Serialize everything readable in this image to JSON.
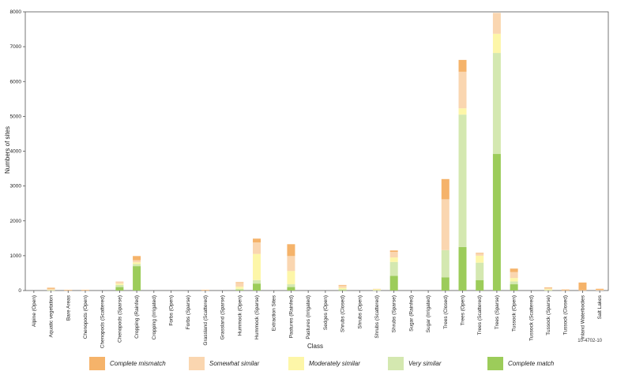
{
  "chart_data": {
    "type": "bar",
    "stacked": true,
    "title": "",
    "xlabel": "Class",
    "ylabel": "Numbers of sites",
    "ylim": [
      0,
      8000
    ],
    "yticks": [
      0,
      1000,
      2000,
      3000,
      4000,
      5000,
      6000,
      7000,
      8000
    ],
    "figure_code": "10-4702-10",
    "categories": [
      "Alpine (Open)",
      "Aquatic vegetation",
      "Bare Areas",
      "Chenopods (Open)",
      "Chenopods (Scattered)",
      "Chenopods (Sparse)",
      "Cropping (Rainfed)",
      "Cropping (Irrigated)",
      "Forbs (Open)",
      "Forbs (Sparse)",
      "Grassland (Scattered)",
      "Grassland (Sparse)",
      "Hummock (Open)",
      "Hummock (Sparse)",
      "Extraction Sites",
      "Pastures (Rainfed)",
      "Pastures (Irrigated)",
      "Sedges (Open)",
      "Shrubs (Closed)",
      "Shrubs (Open)",
      "Shrubs (Scattered)",
      "Shrubs (Sparse)",
      "Sugar (Rainfed)",
      "Sugar (Irrigated)",
      "Trees (Closed)",
      "Trees (Open)",
      "Trees (Scattered)",
      "Trees (Sparse)",
      "Tussock (Open)",
      "Tussock (Scattered)",
      "Tussock (Sparse)",
      "Tussock (Closed)",
      "Inland Waterbodies",
      "Salt Lakes"
    ],
    "series": [
      {
        "name": "Complete match",
        "color": "#9ccc5a",
        "values": [
          0,
          0,
          0,
          0,
          0,
          100,
          700,
          0,
          0,
          0,
          0,
          0,
          20,
          200,
          0,
          100,
          0,
          0,
          10,
          0,
          0,
          420,
          0,
          0,
          380,
          1250,
          300,
          3920,
          180,
          0,
          0,
          0,
          0,
          0
        ]
      },
      {
        "name": "Very similar",
        "color": "#d4e8b0",
        "values": [
          0,
          10,
          0,
          0,
          0,
          60,
          60,
          0,
          0,
          0,
          0,
          0,
          30,
          100,
          0,
          80,
          0,
          0,
          30,
          0,
          10,
          400,
          0,
          0,
          780,
          3800,
          500,
          2900,
          80,
          0,
          10,
          0,
          0,
          0
        ]
      },
      {
        "name": "Moderately similar",
        "color": "#fdf6a8",
        "values": [
          0,
          10,
          0,
          0,
          0,
          40,
          50,
          0,
          0,
          0,
          0,
          0,
          60,
          750,
          0,
          380,
          0,
          0,
          40,
          0,
          30,
          130,
          0,
          0,
          0,
          180,
          200,
          550,
          100,
          0,
          30,
          0,
          0,
          0
        ]
      },
      {
        "name": "Somewhat similar",
        "color": "#fad6b0",
        "values": [
          0,
          30,
          10,
          10,
          0,
          60,
          60,
          0,
          0,
          0,
          10,
          0,
          110,
          330,
          0,
          430,
          0,
          0,
          70,
          0,
          10,
          160,
          0,
          0,
          1460,
          1050,
          60,
          600,
          170,
          0,
          40,
          10,
          10,
          20
        ]
      },
      {
        "name": "Complete mismatch",
        "color": "#f5b36a",
        "values": [
          0,
          30,
          10,
          10,
          0,
          0,
          120,
          0,
          0,
          0,
          10,
          0,
          20,
          110,
          0,
          340,
          0,
          0,
          10,
          0,
          0,
          40,
          0,
          0,
          580,
          340,
          20,
          0,
          100,
          0,
          10,
          20,
          220,
          30
        ]
      }
    ]
  },
  "legend": {
    "items": [
      {
        "label": "Complete mismatch",
        "color": "#f5b36a"
      },
      {
        "label": "Somewhat similar",
        "color": "#fad6b0"
      },
      {
        "label": "Moderately similar",
        "color": "#fdf6a8"
      },
      {
        "label": "Very similar",
        "color": "#d4e8b0"
      },
      {
        "label": "Complete match",
        "color": "#9ccc5a"
      }
    ]
  }
}
